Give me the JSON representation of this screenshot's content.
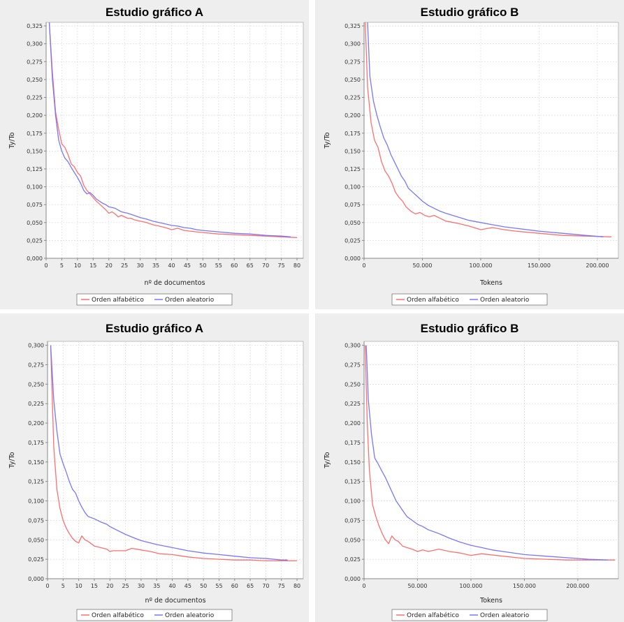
{
  "colors": {
    "series_alfabetico": "#ff6f6f",
    "series_aleatorio": "#7777ff",
    "panel_bg": "#eeeeee",
    "plot_bg": "#ffffff",
    "grid": "#dcdcdc"
  },
  "chart_data": [
    {
      "type": "line",
      "title": "Estudio gráfico A",
      "xlabel": "nº de documentos",
      "ylabel": "Ty/To",
      "xlim": [
        0,
        82
      ],
      "ylim": [
        0,
        0.33
      ],
      "xticks": [
        0,
        5,
        10,
        15,
        20,
        25,
        30,
        35,
        40,
        45,
        50,
        55,
        60,
        65,
        70,
        75,
        80
      ],
      "xtick_labels": [
        "0",
        "5",
        "10",
        "15",
        "20",
        "25",
        "30",
        "35",
        "40",
        "45",
        "50",
        "55",
        "60",
        "65",
        "70",
        "75",
        "80"
      ],
      "yticks": [
        0,
        0.025,
        0.05,
        0.075,
        0.1,
        0.125,
        0.15,
        0.175,
        0.2,
        0.225,
        0.25,
        0.275,
        0.3,
        0.325
      ],
      "ytick_labels": [
        "0,000",
        "0,025",
        "0,050",
        "0,075",
        "0,100",
        "0,125",
        "0,150",
        "0,175",
        "0,200",
        "0,225",
        "0,250",
        "0,275",
        "0,300",
        "0,325"
      ],
      "grid": true,
      "legend": "bottom",
      "series": [
        {
          "name": "Orden alfabético",
          "color": "#ff6f6f",
          "x": [
            1,
            2,
            3,
            4,
            5,
            6,
            7,
            8,
            9,
            10,
            11,
            12,
            13,
            14,
            15,
            16,
            17,
            18,
            19,
            20,
            21,
            22,
            23,
            24,
            25,
            26,
            27,
            28,
            29,
            30,
            32,
            34,
            36,
            38,
            40,
            42,
            44,
            46,
            48,
            50,
            55,
            60,
            65,
            70,
            75,
            80
          ],
          "y": [
            0.33,
            0.26,
            0.205,
            0.18,
            0.16,
            0.155,
            0.145,
            0.132,
            0.128,
            0.12,
            0.115,
            0.102,
            0.095,
            0.09,
            0.085,
            0.08,
            0.076,
            0.072,
            0.068,
            0.063,
            0.065,
            0.062,
            0.058,
            0.06,
            0.058,
            0.056,
            0.056,
            0.054,
            0.053,
            0.052,
            0.05,
            0.047,
            0.045,
            0.043,
            0.04,
            0.042,
            0.039,
            0.038,
            0.037,
            0.036,
            0.034,
            0.033,
            0.032,
            0.031,
            0.03,
            0.029
          ]
        },
        {
          "name": "Orden aleatorio",
          "color": "#7777ff",
          "x": [
            1,
            2,
            3,
            4,
            5,
            6,
            7,
            8,
            9,
            10,
            11,
            12,
            13,
            14,
            15,
            16,
            17,
            18,
            19,
            20,
            22,
            24,
            26,
            28,
            30,
            32,
            34,
            36,
            38,
            40,
            42,
            44,
            46,
            48,
            50,
            55,
            60,
            65,
            70,
            75,
            78
          ],
          "y": [
            0.33,
            0.25,
            0.2,
            0.165,
            0.15,
            0.14,
            0.135,
            0.127,
            0.12,
            0.113,
            0.105,
            0.095,
            0.09,
            0.092,
            0.088,
            0.083,
            0.08,
            0.077,
            0.075,
            0.072,
            0.07,
            0.065,
            0.063,
            0.06,
            0.057,
            0.055,
            0.052,
            0.05,
            0.048,
            0.046,
            0.045,
            0.043,
            0.042,
            0.04,
            0.039,
            0.037,
            0.035,
            0.034,
            0.032,
            0.031,
            0.03
          ]
        }
      ]
    },
    {
      "type": "line",
      "title": "Estudio gráfico B",
      "xlabel": "Tokens",
      "ylabel": "Ty/To",
      "xlim": [
        0,
        218000
      ],
      "ylim": [
        0,
        0.33
      ],
      "xticks": [
        0,
        50000,
        100000,
        150000,
        200000
      ],
      "xtick_labels": [
        "0",
        "50.000",
        "100.000",
        "150.000",
        "200.000"
      ],
      "yticks": [
        0,
        0.025,
        0.05,
        0.075,
        0.1,
        0.125,
        0.15,
        0.175,
        0.2,
        0.225,
        0.25,
        0.275,
        0.3,
        0.325
      ],
      "ytick_labels": [
        "0,000",
        "0,025",
        "0,050",
        "0,075",
        "0,100",
        "0,125",
        "0,150",
        "0,175",
        "0,200",
        "0,225",
        "0,250",
        "0,275",
        "0,300",
        "0,325"
      ],
      "grid": true,
      "legend": "bottom",
      "series": [
        {
          "name": "Orden alfabético",
          "color": "#ff6f6f",
          "x": [
            1000,
            3000,
            6000,
            9000,
            12000,
            15000,
            18000,
            21000,
            24000,
            27000,
            30000,
            33000,
            36000,
            40000,
            44000,
            48000,
            52000,
            56000,
            60000,
            65000,
            70000,
            80000,
            90000,
            100000,
            110000,
            120000,
            130000,
            150000,
            170000,
            190000,
            212000
          ],
          "y": [
            0.33,
            0.24,
            0.19,
            0.165,
            0.155,
            0.135,
            0.122,
            0.115,
            0.105,
            0.092,
            0.085,
            0.08,
            0.072,
            0.066,
            0.062,
            0.064,
            0.06,
            0.058,
            0.06,
            0.056,
            0.052,
            0.049,
            0.045,
            0.04,
            0.043,
            0.04,
            0.038,
            0.035,
            0.032,
            0.031,
            0.03
          ]
        },
        {
          "name": "Orden aleatorio",
          "color": "#7777ff",
          "x": [
            3000,
            5000,
            8000,
            11000,
            14000,
            17000,
            20000,
            23000,
            26000,
            29000,
            32000,
            35000,
            38000,
            42000,
            46000,
            50000,
            55000,
            60000,
            65000,
            70000,
            80000,
            90000,
            100000,
            110000,
            120000,
            130000,
            150000,
            170000,
            190000,
            205000
          ],
          "y": [
            0.33,
            0.255,
            0.22,
            0.2,
            0.183,
            0.168,
            0.158,
            0.145,
            0.135,
            0.125,
            0.115,
            0.108,
            0.098,
            0.092,
            0.086,
            0.08,
            0.074,
            0.07,
            0.066,
            0.063,
            0.058,
            0.053,
            0.05,
            0.047,
            0.044,
            0.042,
            0.038,
            0.035,
            0.032,
            0.03
          ]
        }
      ]
    },
    {
      "type": "line",
      "title": "Estudio gráfico A",
      "xlabel": "nº de documentos",
      "ylabel": "Ty/To",
      "xlim": [
        0,
        82
      ],
      "ylim": [
        0,
        0.305
      ],
      "xticks": [
        0,
        5,
        10,
        15,
        20,
        25,
        30,
        35,
        40,
        45,
        50,
        55,
        60,
        65,
        70,
        75,
        80
      ],
      "xtick_labels": [
        "0",
        "5",
        "10",
        "15",
        "20",
        "25",
        "30",
        "35",
        "40",
        "45",
        "50",
        "55",
        "60",
        "65",
        "70",
        "75",
        "80"
      ],
      "yticks": [
        0,
        0.025,
        0.05,
        0.075,
        0.1,
        0.125,
        0.15,
        0.175,
        0.2,
        0.225,
        0.25,
        0.275,
        0.3
      ],
      "ytick_labels": [
        "0,000",
        "0,025",
        "0,050",
        "0,075",
        "0,100",
        "0,125",
        "0,150",
        "0,175",
        "0,200",
        "0,225",
        "0,250",
        "0,275",
        "0,300"
      ],
      "grid": true,
      "legend": "bottom",
      "series": [
        {
          "name": "Orden alfabético",
          "color": "#ff6f6f",
          "x": [
            1,
            2,
            3,
            4,
            5,
            6,
            7,
            8,
            9,
            10,
            11,
            12,
            13,
            14,
            15,
            17,
            19,
            20,
            21,
            23,
            25,
            27,
            30,
            33,
            36,
            40,
            45,
            50,
            55,
            60,
            65,
            70,
            75,
            80
          ],
          "y": [
            0.3,
            0.17,
            0.115,
            0.09,
            0.075,
            0.065,
            0.058,
            0.052,
            0.048,
            0.046,
            0.055,
            0.05,
            0.048,
            0.045,
            0.042,
            0.04,
            0.038,
            0.035,
            0.036,
            0.036,
            0.036,
            0.039,
            0.037,
            0.035,
            0.032,
            0.031,
            0.028,
            0.026,
            0.025,
            0.024,
            0.024,
            0.023,
            0.023,
            0.023
          ]
        },
        {
          "name": "Orden aleatorio",
          "color": "#7777ff",
          "x": [
            1,
            2,
            3,
            4,
            5,
            6,
            7,
            8,
            9,
            10,
            11,
            12,
            13,
            15,
            17,
            19,
            20,
            22,
            25,
            28,
            30,
            35,
            40,
            45,
            50,
            55,
            60,
            65,
            70,
            75,
            77
          ],
          "y": [
            0.3,
            0.23,
            0.19,
            0.16,
            0.148,
            0.137,
            0.125,
            0.115,
            0.11,
            0.1,
            0.092,
            0.085,
            0.08,
            0.077,
            0.073,
            0.07,
            0.067,
            0.063,
            0.057,
            0.052,
            0.049,
            0.044,
            0.04,
            0.036,
            0.033,
            0.031,
            0.029,
            0.027,
            0.026,
            0.024,
            0.024
          ]
        }
      ]
    },
    {
      "type": "line",
      "title": "Estudio gráfico B",
      "xlabel": "Tokens",
      "ylabel": "Ty/To",
      "xlim": [
        0,
        238000
      ],
      "ylim": [
        0,
        0.305
      ],
      "xticks": [
        0,
        50000,
        100000,
        150000,
        200000
      ],
      "xtick_labels": [
        "0",
        "50.000",
        "100.000",
        "150.000",
        "200.000"
      ],
      "yticks": [
        0,
        0.025,
        0.05,
        0.075,
        0.1,
        0.125,
        0.15,
        0.175,
        0.2,
        0.225,
        0.25,
        0.275,
        0.3
      ],
      "ytick_labels": [
        "0,000",
        "0,025",
        "0,050",
        "0,075",
        "0,100",
        "0,125",
        "0,150",
        "0,175",
        "0,200",
        "0,225",
        "0,250",
        "0,275",
        "0,300"
      ],
      "grid": true,
      "legend": "bottom",
      "series": [
        {
          "name": "Orden alfabético",
          "color": "#ff6f6f",
          "x": [
            1000,
            3000,
            5000,
            8000,
            11000,
            14000,
            17000,
            20000,
            23000,
            26000,
            29000,
            32000,
            36000,
            40000,
            45000,
            50000,
            55000,
            60000,
            70000,
            80000,
            90000,
            100000,
            110000,
            130000,
            150000,
            170000,
            190000,
            210000,
            235000
          ],
          "y": [
            0.3,
            0.2,
            0.14,
            0.095,
            0.08,
            0.068,
            0.058,
            0.05,
            0.045,
            0.055,
            0.05,
            0.048,
            0.042,
            0.04,
            0.038,
            0.035,
            0.037,
            0.035,
            0.038,
            0.035,
            0.033,
            0.03,
            0.032,
            0.029,
            0.026,
            0.025,
            0.024,
            0.024,
            0.024
          ]
        },
        {
          "name": "Orden aleatorio",
          "color": "#7777ff",
          "x": [
            2000,
            4000,
            7000,
            10000,
            13000,
            16000,
            20000,
            25000,
            30000,
            35000,
            40000,
            45000,
            50000,
            55000,
            60000,
            70000,
            80000,
            90000,
            100000,
            110000,
            120000,
            135000,
            150000,
            170000,
            190000,
            210000,
            228000
          ],
          "y": [
            0.3,
            0.23,
            0.185,
            0.155,
            0.148,
            0.14,
            0.13,
            0.115,
            0.1,
            0.09,
            0.08,
            0.075,
            0.07,
            0.067,
            0.063,
            0.058,
            0.052,
            0.047,
            0.043,
            0.04,
            0.037,
            0.034,
            0.031,
            0.029,
            0.027,
            0.025,
            0.024
          ]
        }
      ]
    }
  ]
}
